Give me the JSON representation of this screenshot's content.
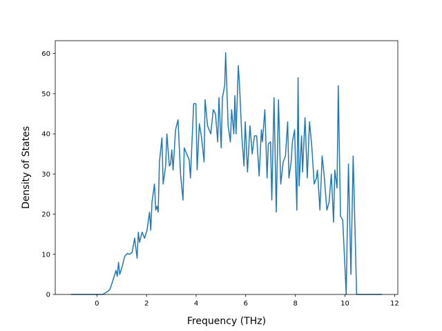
{
  "chart_data": {
    "type": "line",
    "xlabel": "Frequency (THz)",
    "ylabel": "Density of States",
    "xlim": [
      -1.68,
      12.13
    ],
    "ylim": [
      0,
      63.2
    ],
    "xticks": [
      0,
      2,
      4,
      6,
      8,
      10,
      12
    ],
    "yticks": [
      0,
      10,
      20,
      30,
      40,
      50,
      60
    ],
    "x": [
      -1.05,
      0,
      0.22,
      0.32,
      0.42,
      0.52,
      0.62,
      0.72,
      0.77,
      0.82,
      0.87,
      0.92,
      1.02,
      1.12,
      1.22,
      1.32,
      1.42,
      1.52,
      1.62,
      1.67,
      1.72,
      1.82,
      1.92,
      2.02,
      2.12,
      2.17,
      2.22,
      2.32,
      2.37,
      2.42,
      2.47,
      2.52,
      2.62,
      2.67,
      2.77,
      2.82,
      2.92,
      2.97,
      3.02,
      3.07,
      3.17,
      3.27,
      3.37,
      3.47,
      3.52,
      3.62,
      3.72,
      3.77,
      3.9,
      3.99,
      4.04,
      4.13,
      4.22,
      4.32,
      4.36,
      4.46,
      4.59,
      4.69,
      4.78,
      4.87,
      4.92,
      5.01,
      5.06,
      5.15,
      5.19,
      5.29,
      5.38,
      5.43,
      5.52,
      5.56,
      5.61,
      5.7,
      5.75,
      5.84,
      5.93,
      5.98,
      6.07,
      6.17,
      6.26,
      6.35,
      6.44,
      6.54,
      6.63,
      6.67,
      6.77,
      6.86,
      6.91,
      7.0,
      7.05,
      7.14,
      7.23,
      7.32,
      7.41,
      7.51,
      7.6,
      7.69,
      7.74,
      7.83,
      7.88,
      7.97,
      8.06,
      8.11,
      8.15,
      8.25,
      8.29,
      8.39,
      8.48,
      8.57,
      8.66,
      8.76,
      8.85,
      8.89,
      8.99,
      9.08,
      9.17,
      9.27,
      9.36,
      9.45,
      9.54,
      9.59,
      9.68,
      9.73,
      9.82,
      9.91,
      10.05,
      10.14,
      10.24,
      10.33,
      10.47,
      11.5
    ],
    "series": [
      {
        "color": "#1f77b4",
        "values": [
          0,
          0,
          0,
          0.3,
          0.7,
          1.2,
          3,
          5,
          6,
          4.5,
          8,
          5,
          7,
          9.5,
          10.2,
          10,
          10.5,
          14,
          9,
          15.5,
          13,
          15.5,
          14,
          16,
          20.5,
          16,
          23,
          27.5,
          21,
          22,
          20.5,
          33,
          39,
          27.5,
          32,
          40,
          32,
          32.5,
          36,
          31,
          41,
          43.5,
          30,
          23.5,
          36.5,
          35,
          33.5,
          29,
          47.5,
          47.5,
          31,
          42.5,
          39,
          33,
          48.5,
          42,
          40,
          46,
          45,
          38,
          49,
          36.5,
          49,
          52,
          60.2,
          42,
          38,
          46,
          40,
          49.5,
          40,
          57,
          52,
          39.5,
          32,
          43,
          30.5,
          42,
          35,
          39.5,
          39.5,
          29.5,
          41,
          38,
          46,
          29,
          37.5,
          38,
          23.5,
          49,
          20.5,
          48.5,
          27.5,
          33,
          34.5,
          43,
          29,
          33,
          38,
          41,
          21,
          54,
          27,
          39.5,
          30.5,
          44,
          29,
          43,
          37,
          27.5,
          29,
          31,
          21,
          34.5,
          29,
          21,
          23,
          30,
          18,
          31,
          26.5,
          52,
          19.5,
          18.5,
          0,
          32.5,
          5,
          34.5,
          0,
          0
        ]
      }
    ]
  }
}
